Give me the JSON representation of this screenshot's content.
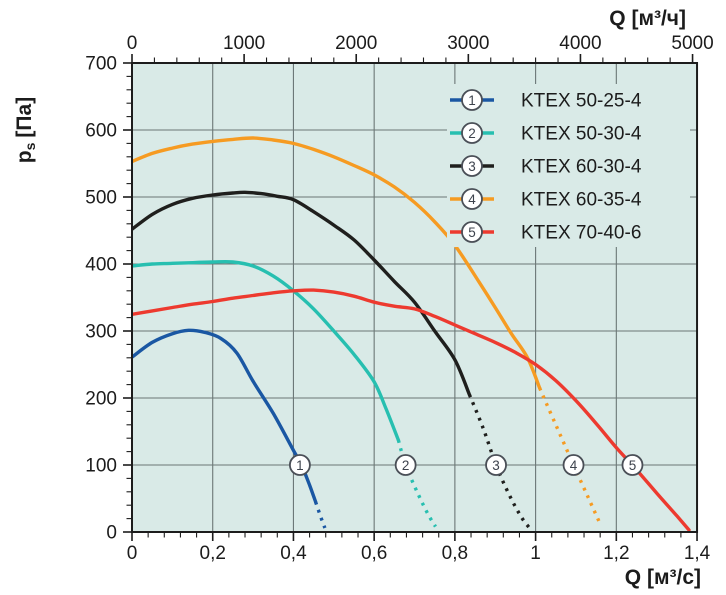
{
  "figure": {
    "plot_bg": "#d9eae7",
    "grid_color": "#6b7776",
    "axis_color": "#1c1c1c",
    "marker_circle": {
      "fill": "#ffffff",
      "stroke": "#4a4f57",
      "text_color": "#3d434d"
    }
  },
  "legend": {
    "items": [
      {
        "number": "1",
        "label": "KTEX 50-25-4",
        "color": "#1a57a3"
      },
      {
        "number": "2",
        "label": "KTEX 50-30-4",
        "color": "#27bfb0"
      },
      {
        "number": "3",
        "label": "KTEX 60-30-4",
        "color": "#1f1f1d"
      },
      {
        "number": "4",
        "label": "KTEX 60-35-4",
        "color": "#f69b22"
      },
      {
        "number": "5",
        "label": "KTEX 70-40-6",
        "color": "#ed3a2f"
      }
    ]
  },
  "chart_data": {
    "type": "line",
    "title": "",
    "x_axis_bottom": {
      "label": "Q [м³/с]",
      "min": 0,
      "max": 1.4,
      "major_tick_step": 0.2,
      "minor_tick_step": 0.04,
      "major_ticks": [
        0,
        0.2,
        0.4,
        0.6,
        0.8,
        1.0,
        1.2,
        1.4
      ],
      "tick_labels": [
        "0",
        "0,2",
        "0,4",
        "0,6",
        "0,8",
        "1",
        "1,2",
        "1,4"
      ]
    },
    "x_axis_top": {
      "label": "Q [м³/ч]",
      "min": 0,
      "max": 5040,
      "major_ticks": [
        0,
        1000,
        2000,
        3000,
        4000,
        5000
      ],
      "minor_tick_step": 200,
      "tick_labels": [
        "0",
        "1000",
        "2000",
        "3000",
        "4000",
        "5000"
      ],
      "unit_conversion": "1 м³/с = 3600 м³/ч"
    },
    "y_axis": {
      "label": "pₛ [Па]",
      "label_parts": {
        "symbol": "p",
        "subscript": "s",
        "units": "[Па]"
      },
      "min": 0,
      "max": 700,
      "major_tick_step": 100,
      "minor_tick_step": 20,
      "tick_labels": [
        "0",
        "100",
        "200",
        "300",
        "400",
        "500",
        "600",
        "700"
      ]
    },
    "grid": {
      "vertical_step": 0.2,
      "horizontal_step": 100
    },
    "series": [
      {
        "number": "1",
        "name": "KTEX 50-25-4",
        "color": "#1a57a3",
        "solid": [
          [
            0,
            261
          ],
          [
            0.05,
            283
          ],
          [
            0.1,
            296
          ],
          [
            0.14,
            301
          ],
          [
            0.18,
            298
          ],
          [
            0.22,
            289
          ],
          [
            0.26,
            267
          ],
          [
            0.3,
            225
          ],
          [
            0.35,
            177
          ],
          [
            0.4,
            122
          ],
          [
            0.42,
            100
          ],
          [
            0.44,
            70
          ],
          [
            0.455,
            45
          ]
        ],
        "dashed": [
          [
            0.455,
            45
          ],
          [
            0.468,
            22
          ],
          [
            0.478,
            6
          ]
        ],
        "marker": {
          "x": 0.416,
          "y": 100
        }
      },
      {
        "number": "2",
        "name": "KTEX 50-30-4",
        "color": "#27bfb0",
        "solid": [
          [
            0,
            397
          ],
          [
            0.05,
            400
          ],
          [
            0.1,
            401
          ],
          [
            0.15,
            402
          ],
          [
            0.2,
            403
          ],
          [
            0.25,
            403
          ],
          [
            0.3,
            397
          ],
          [
            0.35,
            382
          ],
          [
            0.4,
            360
          ],
          [
            0.45,
            333
          ],
          [
            0.5,
            300
          ],
          [
            0.55,
            265
          ],
          [
            0.6,
            224
          ],
          [
            0.63,
            183
          ],
          [
            0.66,
            137
          ]
        ],
        "dashed": [
          [
            0.66,
            137
          ],
          [
            0.678,
            100
          ],
          [
            0.71,
            55
          ],
          [
            0.735,
            25
          ],
          [
            0.752,
            8
          ]
        ],
        "marker": {
          "x": 0.678,
          "y": 100
        }
      },
      {
        "number": "3",
        "name": "KTEX 60-30-4",
        "color": "#1f1f1d",
        "solid": [
          [
            0,
            452
          ],
          [
            0.05,
            474
          ],
          [
            0.1,
            489
          ],
          [
            0.15,
            498
          ],
          [
            0.2,
            503
          ],
          [
            0.25,
            506
          ],
          [
            0.28,
            507
          ],
          [
            0.32,
            505
          ],
          [
            0.36,
            501
          ],
          [
            0.4,
            496
          ],
          [
            0.45,
            478
          ],
          [
            0.5,
            458
          ],
          [
            0.55,
            436
          ],
          [
            0.6,
            406
          ],
          [
            0.65,
            374
          ],
          [
            0.7,
            343
          ],
          [
            0.75,
            300
          ],
          [
            0.8,
            257
          ],
          [
            0.836,
            205
          ]
        ],
        "dashed": [
          [
            0.836,
            205
          ],
          [
            0.87,
            155
          ],
          [
            0.902,
            100
          ],
          [
            0.935,
            55
          ],
          [
            0.965,
            22
          ],
          [
            0.985,
            6
          ]
        ],
        "marker": {
          "x": 0.902,
          "y": 100
        }
      },
      {
        "number": "4",
        "name": "KTEX 60-35-4",
        "color": "#f69b22",
        "solid": [
          [
            0,
            553
          ],
          [
            0.05,
            565
          ],
          [
            0.1,
            573
          ],
          [
            0.15,
            579
          ],
          [
            0.2,
            583
          ],
          [
            0.25,
            586
          ],
          [
            0.3,
            588
          ],
          [
            0.35,
            585
          ],
          [
            0.4,
            580
          ],
          [
            0.45,
            571
          ],
          [
            0.5,
            560
          ],
          [
            0.55,
            547
          ],
          [
            0.6,
            533
          ],
          [
            0.65,
            515
          ],
          [
            0.7,
            492
          ],
          [
            0.75,
            463
          ],
          [
            0.8,
            428
          ],
          [
            0.86,
            373
          ],
          [
            0.9,
            335
          ],
          [
            0.94,
            296
          ],
          [
            0.98,
            260
          ],
          [
            1.01,
            215
          ]
        ],
        "dashed": [
          [
            1.01,
            215
          ],
          [
            1.05,
            160
          ],
          [
            1.094,
            100
          ],
          [
            1.13,
            52
          ],
          [
            1.16,
            12
          ]
        ],
        "marker": {
          "x": 1.094,
          "y": 100
        }
      },
      {
        "number": "5",
        "name": "KTEX 70-40-6",
        "color": "#ed3a2f",
        "solid": [
          [
            0,
            325
          ],
          [
            0.05,
            330
          ],
          [
            0.1,
            335
          ],
          [
            0.15,
            340
          ],
          [
            0.2,
            344
          ],
          [
            0.25,
            349
          ],
          [
            0.3,
            353
          ],
          [
            0.35,
            357
          ],
          [
            0.4,
            360
          ],
          [
            0.45,
            361
          ],
          [
            0.5,
            358
          ],
          [
            0.55,
            352
          ],
          [
            0.6,
            343
          ],
          [
            0.65,
            337
          ],
          [
            0.7,
            333
          ],
          [
            0.75,
            322
          ],
          [
            0.8,
            309
          ],
          [
            0.85,
            296
          ],
          [
            0.9,
            283
          ],
          [
            0.95,
            268
          ],
          [
            1.0,
            250
          ],
          [
            1.05,
            226
          ],
          [
            1.1,
            196
          ],
          [
            1.15,
            162
          ],
          [
            1.2,
            126
          ],
          [
            1.25,
            93
          ],
          [
            1.3,
            58
          ],
          [
            1.35,
            24
          ],
          [
            1.38,
            3
          ]
        ],
        "dashed": [],
        "marker": {
          "x": 1.24,
          "y": 100
        }
      }
    ]
  }
}
